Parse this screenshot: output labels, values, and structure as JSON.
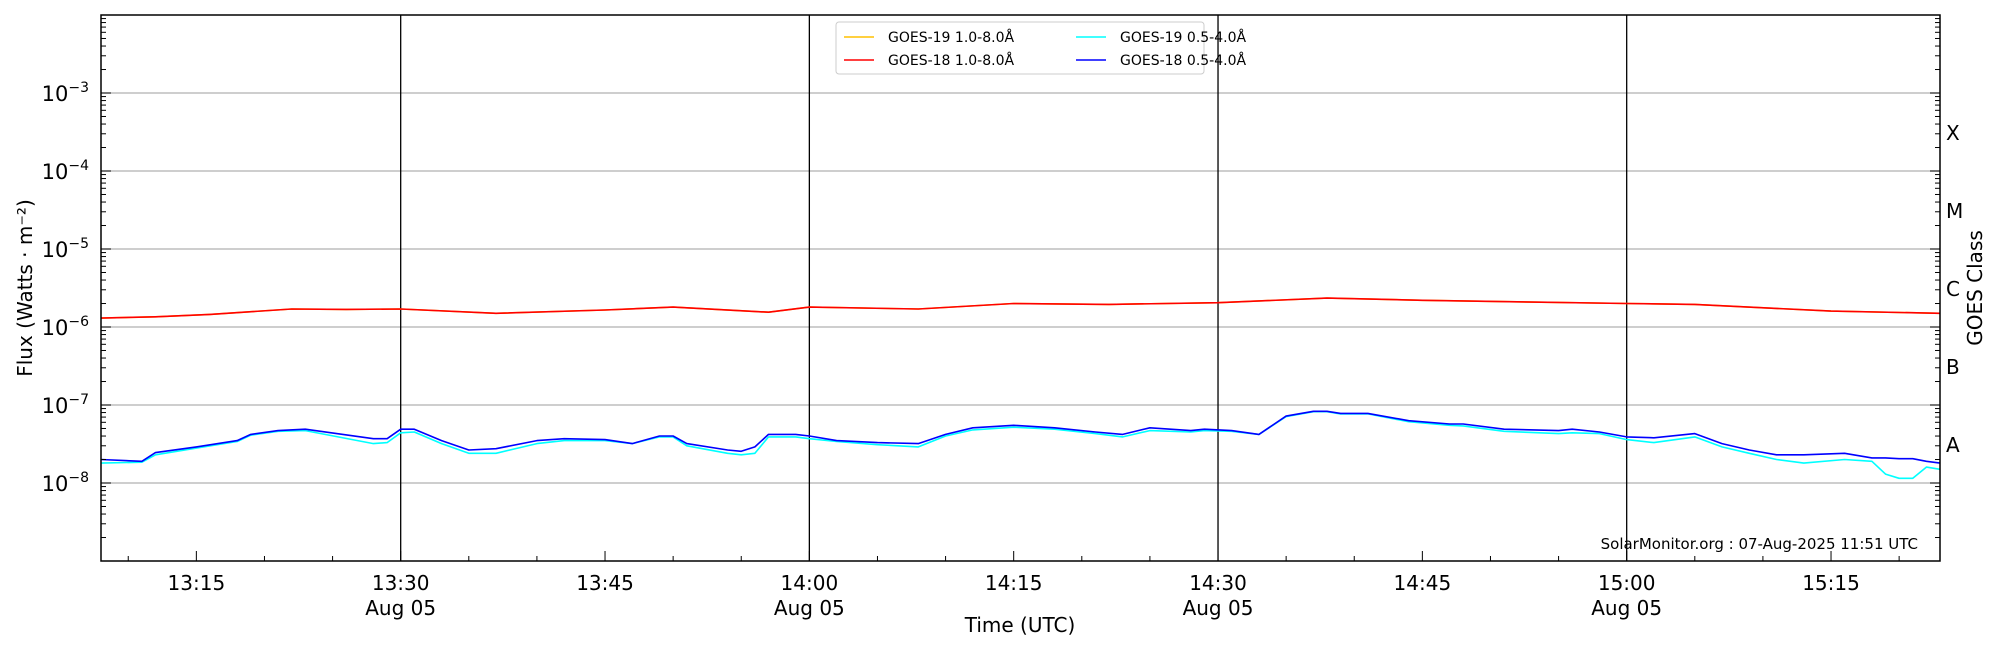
{
  "chart_data": {
    "type": "line",
    "title": "",
    "xlabel": "Time (UTC)",
    "ylabel": "Flux (Watts · m⁻²)",
    "ylabel_right": "GOES Class",
    "yscale": "log",
    "ylim": [
      1e-09,
      0.01
    ],
    "xlim": [
      "13:08",
      "15:23"
    ],
    "date": "Aug 05",
    "grid": "horizontal at decades",
    "legend_position": "top-center",
    "watermark": "SolarMonitor.org : 07-Aug-2025 11:51 UTC",
    "y_ticks": [
      {
        "value": 0.001,
        "base": "10",
        "exp": "−3"
      },
      {
        "value": 0.0001,
        "base": "10",
        "exp": "−4"
      },
      {
        "value": 1e-05,
        "base": "10",
        "exp": "−5"
      },
      {
        "value": 1e-06,
        "base": "10",
        "exp": "−6"
      },
      {
        "value": 1e-07,
        "base": "10",
        "exp": "−7"
      },
      {
        "value": 1e-08,
        "base": "10",
        "exp": "−8"
      }
    ],
    "x_ticks": [
      {
        "time": "13:15",
        "label": "13:15",
        "sub": ""
      },
      {
        "time": "13:30",
        "label": "13:30",
        "sub": "Aug 05"
      },
      {
        "time": "13:45",
        "label": "13:45",
        "sub": ""
      },
      {
        "time": "14:00",
        "label": "14:00",
        "sub": "Aug 05"
      },
      {
        "time": "14:15",
        "label": "14:15",
        "sub": ""
      },
      {
        "time": "14:30",
        "label": "14:30",
        "sub": "Aug 05"
      },
      {
        "time": "14:45",
        "label": "14:45",
        "sub": ""
      },
      {
        "time": "15:00",
        "label": "15:00",
        "sub": "Aug 05"
      },
      {
        "time": "15:15",
        "label": "15:15",
        "sub": ""
      }
    ],
    "vertical_lines": [
      "13:30",
      "14:00",
      "14:30",
      "15:00"
    ],
    "goes_classes": [
      {
        "label": "A",
        "value": 3.16e-08
      },
      {
        "label": "B",
        "value": 3.16e-07
      },
      {
        "label": "C",
        "value": 3.16e-06
      },
      {
        "label": "M",
        "value": 3.16e-05
      },
      {
        "label": "X",
        "value": 0.000316
      }
    ],
    "series": [
      {
        "name": "GOES-19 1.0-8.0Å",
        "color": "#ffc000",
        "x": [
          "13:08",
          "13:12",
          "13:16",
          "13:22",
          "13:26",
          "13:30",
          "13:37",
          "13:45",
          "13:50",
          "13:57",
          "14:00",
          "14:08",
          "14:15",
          "14:22",
          "14:30",
          "14:38",
          "14:45",
          "15:00",
          "15:05",
          "15:15",
          "15:23"
        ],
        "y": [
          1.3e-06,
          1.35e-06,
          1.45e-06,
          1.7e-06,
          1.68e-06,
          1.7e-06,
          1.5e-06,
          1.65e-06,
          1.8e-06,
          1.55e-06,
          1.8e-06,
          1.7e-06,
          2e-06,
          1.95e-06,
          2.05e-06,
          2.35e-06,
          2.2e-06,
          2e-06,
          1.95e-06,
          1.6e-06,
          1.5e-06
        ]
      },
      {
        "name": "GOES-18 1.0-8.0Å",
        "color": "#ff0000",
        "x": [
          "13:08",
          "13:12",
          "13:16",
          "13:22",
          "13:26",
          "13:30",
          "13:37",
          "13:45",
          "13:50",
          "13:57",
          "14:00",
          "14:08",
          "14:15",
          "14:22",
          "14:30",
          "14:38",
          "14:45",
          "15:00",
          "15:05",
          "15:15",
          "15:23"
        ],
        "y": [
          1.3e-06,
          1.35e-06,
          1.45e-06,
          1.7e-06,
          1.68e-06,
          1.7e-06,
          1.5e-06,
          1.65e-06,
          1.8e-06,
          1.55e-06,
          1.8e-06,
          1.7e-06,
          2e-06,
          1.95e-06,
          2.05e-06,
          2.35e-06,
          2.2e-06,
          2e-06,
          1.95e-06,
          1.6e-06,
          1.5e-06
        ]
      },
      {
        "name": "GOES-19 0.5-4.0Å",
        "color": "#00ffff",
        "x": [
          "13:08",
          "13:11",
          "13:12",
          "13:15",
          "13:18",
          "13:19",
          "13:21",
          "13:23",
          "13:28",
          "13:29",
          "13:30",
          "13:31",
          "13:33",
          "13:35",
          "13:37",
          "13:40",
          "13:42",
          "13:45",
          "13:47",
          "13:49",
          "13:50",
          "13:51",
          "13:54",
          "13:55",
          "13:56",
          "13:57",
          "13:59",
          "14:00",
          "14:02",
          "14:05",
          "14:08",
          "14:10",
          "14:12",
          "14:15",
          "14:18",
          "14:21",
          "14:23",
          "14:25",
          "14:28",
          "14:29",
          "14:31",
          "14:33",
          "14:35",
          "14:37",
          "14:38",
          "14:39",
          "14:41",
          "14:44",
          "14:47",
          "14:48",
          "14:51",
          "14:55",
          "14:56",
          "14:58",
          "15:00",
          "15:02",
          "15:05",
          "15:07",
          "15:09",
          "15:11",
          "15:13",
          "15:16",
          "15:18",
          "15:19",
          "15:20",
          "15:21",
          "15:22",
          "15:23"
        ],
        "y": [
          1.8e-08,
          1.85e-08,
          2.3e-08,
          2.8e-08,
          3.4e-08,
          4.1e-08,
          4.6e-08,
          4.7e-08,
          3.2e-08,
          3.3e-08,
          4.4e-08,
          4.5e-08,
          3.2e-08,
          2.4e-08,
          2.4e-08,
          3.2e-08,
          3.5e-08,
          3.5e-08,
          3.2e-08,
          3.9e-08,
          3.9e-08,
          3e-08,
          2.4e-08,
          2.3e-08,
          2.4e-08,
          3.9e-08,
          3.9e-08,
          3.7e-08,
          3.4e-08,
          3.1e-08,
          2.9e-08,
          4e-08,
          4.8e-08,
          5.2e-08,
          4.9e-08,
          4.3e-08,
          3.9e-08,
          4.7e-08,
          4.5e-08,
          4.7e-08,
          4.6e-08,
          4.2e-08,
          7.1e-08,
          8.2e-08,
          8.2e-08,
          7.7e-08,
          7.7e-08,
          6.1e-08,
          5.5e-08,
          5.4e-08,
          4.6e-08,
          4.3e-08,
          4.4e-08,
          4.3e-08,
          3.6e-08,
          3.3e-08,
          3.9e-08,
          2.9e-08,
          2.4e-08,
          2e-08,
          1.8e-08,
          2e-08,
          1.9e-08,
          1.3e-08,
          1.15e-08,
          1.15e-08,
          1.6e-08,
          1.5e-08
        ]
      },
      {
        "name": "GOES-18 0.5-4.0Å",
        "color": "#0000ff",
        "x": [
          "13:08",
          "13:11",
          "13:12",
          "13:15",
          "13:18",
          "13:19",
          "13:21",
          "13:23",
          "13:28",
          "13:29",
          "13:30",
          "13:31",
          "13:33",
          "13:35",
          "13:37",
          "13:40",
          "13:42",
          "13:45",
          "13:47",
          "13:49",
          "13:50",
          "13:51",
          "13:54",
          "13:55",
          "13:56",
          "13:57",
          "13:59",
          "14:00",
          "14:02",
          "14:05",
          "14:08",
          "14:10",
          "14:12",
          "14:15",
          "14:18",
          "14:21",
          "14:23",
          "14:25",
          "14:28",
          "14:29",
          "14:31",
          "14:33",
          "14:35",
          "14:37",
          "14:38",
          "14:39",
          "14:41",
          "14:44",
          "14:47",
          "14:48",
          "14:51",
          "14:55",
          "14:56",
          "14:58",
          "15:00",
          "15:02",
          "15:05",
          "15:07",
          "15:09",
          "15:11",
          "15:13",
          "15:16",
          "15:18",
          "15:19",
          "15:20",
          "15:21",
          "15:22",
          "15:23"
        ],
        "y": [
          2e-08,
          1.9e-08,
          2.45e-08,
          2.9e-08,
          3.5e-08,
          4.2e-08,
          4.7e-08,
          4.9e-08,
          3.7e-08,
          3.7e-08,
          4.9e-08,
          4.9e-08,
          3.5e-08,
          2.65e-08,
          2.75e-08,
          3.5e-08,
          3.7e-08,
          3.6e-08,
          3.2e-08,
          4e-08,
          4e-08,
          3.2e-08,
          2.65e-08,
          2.55e-08,
          2.9e-08,
          4.2e-08,
          4.2e-08,
          4e-08,
          3.5e-08,
          3.3e-08,
          3.2e-08,
          4.2e-08,
          5.1e-08,
          5.5e-08,
          5.1e-08,
          4.5e-08,
          4.2e-08,
          5.1e-08,
          4.7e-08,
          4.9e-08,
          4.7e-08,
          4.2e-08,
          7.2e-08,
          8.3e-08,
          8.3e-08,
          7.8e-08,
          7.8e-08,
          6.3e-08,
          5.7e-08,
          5.7e-08,
          4.9e-08,
          4.7e-08,
          4.9e-08,
          4.5e-08,
          3.9e-08,
          3.8e-08,
          4.3e-08,
          3.2e-08,
          2.65e-08,
          2.3e-08,
          2.3e-08,
          2.4e-08,
          2.1e-08,
          2.1e-08,
          2.05e-08,
          2.05e-08,
          1.9e-08,
          1.8e-08
        ]
      }
    ]
  }
}
